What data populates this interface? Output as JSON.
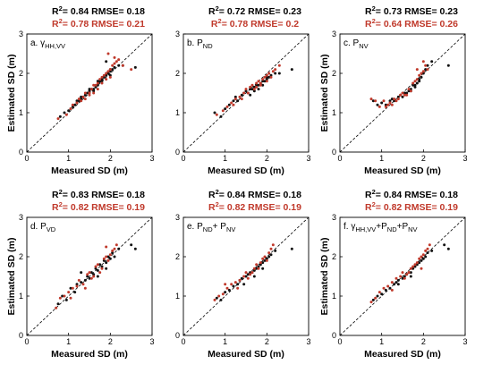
{
  "colors": {
    "series_black": "#111111",
    "series_red": "#c0392b",
    "stat_red": "#c0392b",
    "stat_black": "#000000"
  },
  "chart_data": [
    {
      "type": "scatter",
      "panel_label": "a. γ",
      "panel_label_sub": "HH,VV",
      "panel_label_rest": "",
      "stat_black": {
        "r2": "R",
        "sup": "2",
        "text": "= 0.84 RMSE= 0.18"
      },
      "stat_red": {
        "r2": "R",
        "sup": "2",
        "text": "= 0.78 RMSE= 0.21"
      },
      "xlabel": "Measured SD (m)",
      "ylabel": "Estimated SD (m)",
      "xlim": [
        0,
        3
      ],
      "ylim": [
        0,
        3
      ],
      "xticks": [
        0,
        1,
        2,
        3
      ],
      "yticks": [
        0,
        1,
        2,
        3
      ],
      "one_to_one_line": true,
      "series": [
        {
          "color": "#111111",
          "x": [
            0.8,
            0.9,
            1.0,
            1.05,
            1.1,
            1.15,
            1.2,
            1.25,
            1.3,
            1.35,
            1.4,
            1.45,
            1.5,
            1.55,
            1.6,
            1.65,
            1.7,
            1.72,
            1.75,
            1.8,
            1.82,
            1.85,
            1.9,
            1.92,
            1.95,
            2.0,
            2.0,
            2.05,
            2.1,
            2.2,
            2.3,
            2.6,
            1.9,
            1.7,
            1.5,
            1.3,
            1.2,
            1.6,
            1.8,
            2.0
          ],
          "y": [
            0.9,
            1.0,
            1.05,
            1.1,
            1.15,
            1.2,
            1.3,
            1.3,
            1.35,
            1.4,
            1.45,
            1.5,
            1.55,
            1.6,
            1.6,
            1.65,
            1.7,
            1.75,
            1.8,
            1.85,
            1.9,
            1.9,
            1.95,
            2.0,
            2.0,
            2.05,
            2.1,
            2.1,
            2.15,
            2.2,
            2.2,
            2.15,
            2.3,
            1.8,
            1.6,
            1.4,
            1.25,
            1.55,
            1.8,
            1.95
          ]
        },
        {
          "color": "#c0392b",
          "x": [
            0.75,
            0.95,
            1.05,
            1.1,
            1.2,
            1.25,
            1.35,
            1.4,
            1.5,
            1.55,
            1.6,
            1.65,
            1.7,
            1.75,
            1.8,
            1.85,
            1.9,
            1.95,
            2.0,
            2.05,
            2.1,
            2.15,
            2.2,
            2.3,
            2.5,
            1.7,
            1.8,
            1.9,
            2.0,
            1.6,
            1.4,
            1.3,
            1.5,
            2.1,
            1.95
          ],
          "y": [
            0.85,
            0.95,
            1.1,
            1.2,
            1.25,
            1.35,
            1.4,
            1.5,
            1.5,
            1.6,
            1.7,
            1.7,
            1.75,
            1.85,
            1.9,
            1.95,
            2.0,
            2.05,
            2.1,
            2.2,
            2.25,
            2.3,
            2.35,
            2.2,
            2.1,
            1.6,
            1.75,
            1.85,
            1.9,
            1.5,
            1.35,
            1.3,
            1.45,
            2.4,
            2.5
          ]
        }
      ]
    },
    {
      "type": "scatter",
      "panel_label": "b. P",
      "panel_label_sub": "ND",
      "panel_label_rest": "",
      "stat_black": {
        "r2": "R",
        "sup": "2",
        "text": "= 0.72 RMSE= 0.23"
      },
      "stat_red": {
        "r2": "R",
        "sup": "2",
        "text": "= 0.78 RMSE= 0.2"
      },
      "xlabel": "Measured SD (m)",
      "ylabel": "",
      "xlim": [
        0,
        3
      ],
      "ylim": [
        0,
        3
      ],
      "xticks": [
        0,
        1,
        2,
        3
      ],
      "yticks": [
        0,
        1,
        2,
        3
      ],
      "one_to_one_line": true,
      "series": [
        {
          "color": "#111111",
          "x": [
            0.75,
            0.9,
            1.0,
            1.1,
            1.2,
            1.25,
            1.3,
            1.4,
            1.45,
            1.5,
            1.55,
            1.6,
            1.65,
            1.7,
            1.75,
            1.8,
            1.85,
            1.9,
            1.95,
            2.0,
            2.05,
            2.1,
            2.2,
            2.3,
            2.6,
            1.7,
            1.8,
            1.9,
            2.0,
            1.6
          ],
          "y": [
            1.0,
            0.9,
            1.1,
            1.2,
            1.3,
            1.4,
            1.3,
            1.45,
            1.5,
            1.55,
            1.5,
            1.6,
            1.6,
            1.65,
            1.7,
            1.7,
            1.75,
            1.8,
            1.8,
            1.85,
            1.9,
            1.95,
            2.0,
            2.0,
            2.1,
            1.55,
            1.6,
            1.7,
            1.9,
            1.45
          ]
        },
        {
          "color": "#c0392b",
          "x": [
            0.8,
            0.95,
            1.05,
            1.15,
            1.25,
            1.35,
            1.45,
            1.5,
            1.6,
            1.65,
            1.7,
            1.75,
            1.8,
            1.85,
            1.9,
            1.95,
            2.0,
            2.05,
            2.1,
            2.15,
            2.2,
            2.3,
            1.55,
            1.75,
            1.85,
            2.0,
            1.4,
            1.2
          ],
          "y": [
            0.95,
            1.05,
            1.15,
            1.25,
            1.35,
            1.4,
            1.5,
            1.6,
            1.65,
            1.7,
            1.6,
            1.75,
            1.8,
            1.7,
            1.85,
            1.9,
            1.95,
            2.0,
            1.9,
            2.05,
            2.1,
            2.2,
            1.5,
            1.65,
            1.75,
            1.8,
            1.35,
            1.2
          ]
        }
      ]
    },
    {
      "type": "scatter",
      "panel_label": "c. P",
      "panel_label_sub": "NV",
      "panel_label_rest": "",
      "stat_black": {
        "r2": "R",
        "sup": "2",
        "text": "= 0.73 RMSE= 0.23"
      },
      "stat_red": {
        "r2": "R",
        "sup": "2",
        "text": "= 0.64 RMSE= 0.26"
      },
      "xlabel": "Measured SD (m)",
      "ylabel": "Estimated SD (m)",
      "xlim": [
        0,
        3
      ],
      "ylim": [
        0,
        3
      ],
      "xticks": [
        0,
        1,
        2,
        3
      ],
      "yticks": [
        0,
        1,
        2,
        3
      ],
      "one_to_one_line": true,
      "series": [
        {
          "color": "#111111",
          "x": [
            0.8,
            0.9,
            1.0,
            1.1,
            1.2,
            1.25,
            1.3,
            1.4,
            1.45,
            1.5,
            1.55,
            1.6,
            1.65,
            1.7,
            1.75,
            1.8,
            1.85,
            1.9,
            1.95,
            2.0,
            2.05,
            2.1,
            2.2,
            2.6,
            1.7,
            1.8,
            1.9
          ],
          "y": [
            1.3,
            1.2,
            1.25,
            1.2,
            1.3,
            1.35,
            1.3,
            1.4,
            1.45,
            1.4,
            1.5,
            1.5,
            1.55,
            1.6,
            1.7,
            1.7,
            1.75,
            1.8,
            1.9,
            2.0,
            2.1,
            2.2,
            2.3,
            2.2,
            1.55,
            1.65,
            1.85
          ]
        },
        {
          "color": "#c0392b",
          "x": [
            0.75,
            0.85,
            0.95,
            1.05,
            1.15,
            1.2,
            1.3,
            1.35,
            1.45,
            1.5,
            1.6,
            1.65,
            1.7,
            1.75,
            1.8,
            1.85,
            1.9,
            1.95,
            2.0,
            2.05,
            2.1,
            1.55,
            1.4,
            1.25,
            1.1,
            2.0,
            1.85
          ],
          "y": [
            1.35,
            1.3,
            1.15,
            1.3,
            1.2,
            1.25,
            1.35,
            1.3,
            1.45,
            1.5,
            1.45,
            1.6,
            1.55,
            1.75,
            1.8,
            1.85,
            1.95,
            2.0,
            2.05,
            2.2,
            2.1,
            1.45,
            1.35,
            1.2,
            1.15,
            2.3,
            2.1
          ]
        }
      ]
    },
    {
      "type": "scatter",
      "panel_label": "d. P",
      "panel_label_sub": "VD",
      "panel_label_rest": "",
      "stat_black": {
        "r2": "R",
        "sup": "2",
        "text": "= 0.83 RMSE= 0.18"
      },
      "stat_red": {
        "r2": "R",
        "sup": "2",
        "text": "= 0.82 RMSE= 0.19"
      },
      "xlabel": "Measured SD (m)",
      "ylabel": "Estimated SD (m)",
      "xlim": [
        0,
        3
      ],
      "ylim": [
        0,
        3
      ],
      "xticks": [
        0,
        1,
        2,
        3
      ],
      "yticks": [
        0,
        1,
        2,
        3
      ],
      "one_to_one_line": true,
      "series": [
        {
          "color": "#111111",
          "x": [
            0.75,
            0.85,
            0.95,
            1.05,
            1.15,
            1.2,
            1.3,
            1.4,
            1.45,
            1.5,
            1.55,
            1.6,
            1.65,
            1.7,
            1.75,
            1.8,
            1.85,
            1.9,
            1.95,
            2.0,
            2.05,
            2.1,
            2.2,
            2.5,
            2.6,
            1.7,
            1.9,
            1.3
          ],
          "y": [
            0.8,
            1.0,
            0.9,
            1.2,
            1.1,
            1.3,
            1.35,
            1.4,
            1.5,
            1.45,
            1.6,
            1.55,
            1.7,
            1.65,
            1.8,
            1.75,
            1.9,
            1.85,
            2.0,
            1.95,
            2.1,
            2.0,
            2.2,
            2.3,
            2.2,
            1.5,
            1.7,
            1.6
          ]
        },
        {
          "color": "#c0392b",
          "x": [
            0.7,
            0.8,
            0.9,
            1.0,
            1.1,
            1.2,
            1.25,
            1.35,
            1.45,
            1.5,
            1.6,
            1.65,
            1.7,
            1.8,
            1.85,
            1.9,
            1.95,
            2.0,
            2.05,
            2.1,
            2.15,
            1.55,
            1.75,
            1.4,
            1.05,
            1.9
          ],
          "y": [
            0.7,
            0.95,
            1.0,
            1.1,
            1.2,
            1.25,
            1.4,
            1.3,
            1.55,
            1.6,
            1.5,
            1.75,
            1.8,
            1.7,
            1.95,
            2.0,
            1.9,
            2.05,
            2.15,
            2.2,
            2.3,
            1.45,
            1.6,
            1.2,
            0.95,
            2.25
          ]
        }
      ]
    },
    {
      "type": "scatter",
      "panel_label": "e. P",
      "panel_label_sub": "ND",
      "panel_label_rest": "+ P",
      "panel_label_sub2": "NV",
      "stat_black": {
        "r2": "R",
        "sup": "2",
        "text": "= 0.84 RMSE= 0.18"
      },
      "stat_red": {
        "r2": "R",
        "sup": "2",
        "text": "= 0.82 RMSE= 0.19"
      },
      "xlabel": "Measured SD (m)",
      "ylabel": "",
      "xlim": [
        0,
        3
      ],
      "ylim": [
        0,
        3
      ],
      "xticks": [
        0,
        1,
        2,
        3
      ],
      "yticks": [
        0,
        1,
        2,
        3
      ],
      "one_to_one_line": true,
      "series": [
        {
          "color": "#111111",
          "x": [
            0.8,
            0.9,
            1.0,
            1.1,
            1.2,
            1.3,
            1.35,
            1.4,
            1.5,
            1.55,
            1.6,
            1.65,
            1.7,
            1.75,
            1.8,
            1.85,
            1.9,
            1.95,
            2.0,
            2.05,
            2.1,
            2.2,
            2.6,
            1.7,
            1.9,
            1.45
          ],
          "y": [
            0.95,
            0.9,
            1.1,
            1.15,
            1.25,
            1.3,
            1.4,
            1.45,
            1.5,
            1.55,
            1.6,
            1.6,
            1.65,
            1.7,
            1.75,
            1.8,
            1.85,
            1.9,
            1.95,
            2.0,
            2.05,
            2.15,
            2.2,
            1.5,
            1.7,
            1.3
          ]
        },
        {
          "color": "#c0392b",
          "x": [
            0.75,
            0.85,
            0.95,
            1.05,
            1.15,
            1.25,
            1.35,
            1.45,
            1.5,
            1.6,
            1.7,
            1.75,
            1.8,
            1.85,
            1.9,
            1.95,
            2.0,
            2.05,
            2.1,
            2.15,
            1.55,
            1.65,
            1.3,
            1.0
          ],
          "y": [
            0.9,
            1.0,
            1.05,
            1.2,
            1.3,
            1.35,
            1.4,
            1.5,
            1.6,
            1.55,
            1.7,
            1.8,
            1.7,
            1.85,
            1.95,
            2.0,
            1.9,
            2.1,
            2.2,
            2.3,
            1.45,
            1.6,
            1.2,
            1.3
          ]
        }
      ]
    },
    {
      "type": "scatter",
      "panel_label": "f. γ",
      "panel_label_sub": "HH,VV",
      "panel_label_rest": "+P",
      "panel_label_sub2": "ND",
      "panel_label_rest2": "+P",
      "panel_label_sub3": "NV",
      "stat_black": {
        "r2": "R",
        "sup": "2",
        "text": "= 0.84 RMSE= 0.18"
      },
      "stat_red": {
        "r2": "R",
        "sup": "2",
        "text": "= 0.82 RMSE= 0.19"
      },
      "xlabel": "Measured SD (m)",
      "ylabel": "Estimated SD (m)",
      "xlim": [
        0,
        3
      ],
      "ylim": [
        0,
        3
      ],
      "xticks": [
        0,
        1,
        2,
        3
      ],
      "yticks": [
        0,
        1,
        2,
        3
      ],
      "one_to_one_line": true,
      "series": [
        {
          "color": "#111111",
          "x": [
            0.8,
            0.9,
            1.0,
            1.1,
            1.2,
            1.3,
            1.35,
            1.4,
            1.5,
            1.55,
            1.6,
            1.65,
            1.7,
            1.75,
            1.8,
            1.85,
            1.9,
            1.95,
            2.0,
            2.05,
            2.1,
            2.2,
            2.5,
            2.6,
            1.7,
            1.4
          ],
          "y": [
            0.9,
            1.0,
            1.05,
            1.15,
            1.2,
            1.3,
            1.35,
            1.4,
            1.45,
            1.5,
            1.55,
            1.6,
            1.6,
            1.7,
            1.75,
            1.8,
            1.85,
            1.9,
            1.95,
            2.0,
            2.1,
            2.15,
            2.3,
            2.2,
            1.5,
            1.3
          ]
        },
        {
          "color": "#c0392b",
          "x": [
            0.75,
            0.85,
            0.95,
            1.05,
            1.15,
            1.25,
            1.35,
            1.45,
            1.5,
            1.6,
            1.7,
            1.75,
            1.8,
            1.85,
            1.9,
            1.95,
            2.0,
            2.05,
            2.1,
            2.15,
            1.55,
            1.65,
            1.25,
            1.95
          ],
          "y": [
            0.85,
            0.95,
            1.1,
            1.2,
            1.25,
            1.35,
            1.45,
            1.5,
            1.6,
            1.55,
            1.7,
            1.75,
            1.8,
            1.85,
            1.95,
            2.0,
            2.05,
            2.15,
            2.2,
            2.3,
            1.45,
            1.6,
            1.15,
            1.7
          ]
        }
      ]
    }
  ]
}
